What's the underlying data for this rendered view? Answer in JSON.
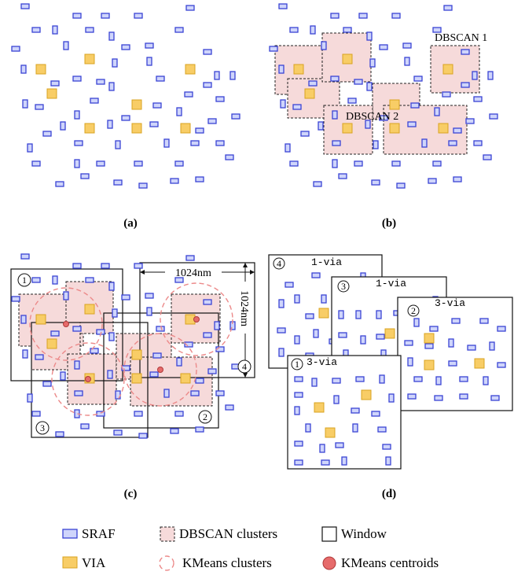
{
  "panels": {
    "a": {
      "caption": "(a)"
    },
    "b": {
      "caption": "(b)",
      "cluster_labels": [
        "DBSCAN 1",
        "DBSCAN 2"
      ]
    },
    "c": {
      "caption": "(c)",
      "width_label": "1024nm",
      "height_label": "1024nm",
      "window_numbers": [
        "1",
        "2",
        "3",
        "4"
      ]
    },
    "d": {
      "caption": "(d)",
      "windows": [
        {
          "number": "4",
          "label": "1-via"
        },
        {
          "number": "3",
          "label": "1-via"
        },
        {
          "number": "2",
          "label": "3-via"
        },
        {
          "number": "1",
          "label": "3-via"
        }
      ]
    }
  },
  "legend": {
    "items": [
      {
        "label": "SRAF",
        "symbol": "sraf-icon"
      },
      {
        "label": "DBSCAN clusters",
        "symbol": "dbscan-cluster-icon"
      },
      {
        "label": "Window",
        "symbol": "window-icon"
      },
      {
        "label": "VIA",
        "symbol": "via-icon"
      },
      {
        "label": "KMeans clusters",
        "symbol": "kmeans-cluster-icon"
      },
      {
        "label": "KMeans centroids",
        "symbol": "kmeans-centroid-icon"
      }
    ]
  },
  "colors": {
    "sraf_fill": "#cfd5fb",
    "sraf_stroke": "#3a44d4",
    "via_fill": "#f8cd66",
    "cluster_fill": "#f6dada",
    "kmeans_stroke": "#ec8a8a",
    "centroid_fill": "#e66b6b"
  }
}
